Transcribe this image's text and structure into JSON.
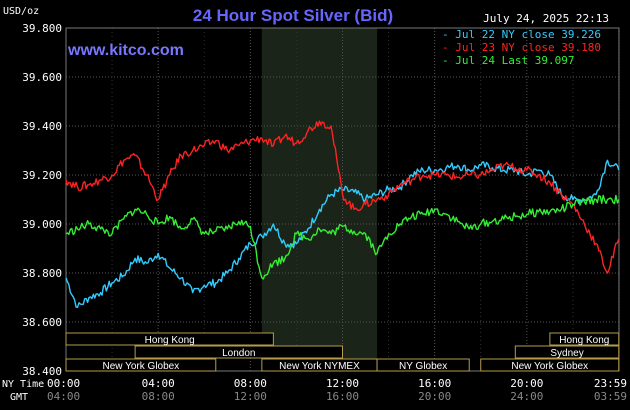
{
  "chart_data": {
    "type": "line",
    "title": "24 Hour Spot Silver (Bid)",
    "watermark": "www.kitco.com",
    "timestamp": "July 24, 2025 22:13",
    "y_unit": "USD/oz",
    "ylim": [
      38.4,
      39.8
    ],
    "y_ticks": [
      "39.800",
      "39.600",
      "39.400",
      "39.200",
      "39.000",
      "38.800",
      "38.600",
      "38.400"
    ],
    "x_time_label_1": "NY Time",
    "x_time_label_2": "GMT",
    "x_ticks_ny": [
      "00:00",
      "04:00",
      "08:00",
      "12:00",
      "16:00",
      "20:00",
      "23:59"
    ],
    "x_ticks_gmt": [
      "04:00",
      "08:00",
      "12:00",
      "16:00",
      "20:00",
      "24:00",
      "03:59"
    ],
    "grid": true,
    "legend_position": "top-right",
    "highlight_window": {
      "label": "New York NYMEX",
      "from_hour": 8.5,
      "to_hour": 13.5
    },
    "sessions": [
      {
        "name": "Hong Kong",
        "row": 0,
        "start": 0.0,
        "end": 9.0
      },
      {
        "name": "London",
        "row": 1,
        "start": 3.0,
        "end": 12.0
      },
      {
        "name": "New York Globex",
        "row": 2,
        "start": 0.0,
        "end": 6.5
      },
      {
        "name": "New York NYMEX",
        "row": 2,
        "start": 8.5,
        "end": 13.5
      },
      {
        "name": "NY Globex",
        "row": 2,
        "start": 13.5,
        "end": 17.5
      },
      {
        "name": "Hong Kong",
        "row": 0,
        "start": 21.0,
        "end": 23.99
      },
      {
        "name": "Sydney",
        "row": 1,
        "start": 19.5,
        "end": 23.99
      },
      {
        "name": "New York Globex",
        "row": 2,
        "start": 18.0,
        "end": 23.99
      }
    ],
    "series": [
      {
        "name": "Jul 22 NY close 39.226",
        "color": "#33ccff",
        "x": [
          0,
          0.5,
          1,
          1.5,
          2,
          2.5,
          3,
          3.5,
          4,
          4.5,
          5,
          5.5,
          6,
          6.5,
          7,
          7.5,
          8,
          8.5,
          9,
          9.5,
          10,
          10.5,
          11,
          11.5,
          12,
          12.5,
          13,
          13.5,
          14,
          14.5,
          15,
          15.5,
          16,
          16.5,
          17,
          17.5,
          18,
          18.5,
          19,
          19.5,
          20,
          20.5,
          21,
          21.5,
          22,
          22.5,
          23,
          23.5,
          23.99
        ],
        "values": [
          38.78,
          38.66,
          38.7,
          38.72,
          38.76,
          38.79,
          38.86,
          38.84,
          38.88,
          38.82,
          38.78,
          38.72,
          38.75,
          38.76,
          38.8,
          38.86,
          38.92,
          38.95,
          39.0,
          38.92,
          38.92,
          38.98,
          39.06,
          39.12,
          39.14,
          39.13,
          39.1,
          39.12,
          39.14,
          39.15,
          39.2,
          39.22,
          39.22,
          39.23,
          39.24,
          39.22,
          39.24,
          39.23,
          39.22,
          39.22,
          39.2,
          39.22,
          39.2,
          39.12,
          39.1,
          39.1,
          39.12,
          39.26,
          39.22
        ]
      },
      {
        "name": "Jul 23 NY close 39.180",
        "color": "#ff2222",
        "x": [
          0,
          0.5,
          1,
          1.5,
          2,
          2.5,
          3,
          3.5,
          4,
          4.5,
          5,
          5.5,
          6,
          6.5,
          7,
          7.5,
          8,
          8.5,
          9,
          9.5,
          10,
          10.5,
          11,
          11.5,
          12,
          12.5,
          13,
          13.5,
          14,
          14.5,
          15,
          15.5,
          16,
          16.5,
          17,
          17.5,
          18,
          18.5,
          19,
          19.5,
          20,
          20.5,
          21,
          21.5,
          22,
          22.5,
          23,
          23.5,
          23.99
        ],
        "values": [
          39.18,
          39.15,
          39.16,
          39.18,
          39.2,
          39.26,
          39.28,
          39.2,
          39.1,
          39.2,
          39.28,
          39.3,
          39.32,
          39.34,
          39.3,
          39.32,
          39.34,
          39.35,
          39.32,
          39.36,
          39.33,
          39.38,
          39.42,
          39.4,
          39.12,
          39.06,
          39.08,
          39.1,
          39.12,
          39.16,
          39.18,
          39.2,
          39.2,
          39.2,
          39.19,
          39.2,
          39.2,
          39.22,
          39.24,
          39.23,
          39.22,
          39.2,
          39.17,
          39.12,
          39.08,
          39.0,
          38.92,
          38.8,
          38.94
        ]
      },
      {
        "name": "Jul 24 Last 39.097",
        "color": "#33ee33",
        "x": [
          0,
          0.5,
          1,
          1.5,
          2,
          2.5,
          3,
          3.5,
          4,
          4.5,
          5,
          5.5,
          6,
          6.5,
          7,
          7.5,
          8,
          8.5,
          9,
          9.5,
          10,
          10.5,
          11,
          11.5,
          12,
          12.5,
          13,
          13.5,
          14,
          14.5,
          15,
          15.5,
          16,
          16.5,
          17,
          17.5,
          18,
          18.5,
          19,
          19.5,
          20,
          20.5,
          21,
          21.5,
          22,
          22.5,
          23,
          23.5,
          23.99
        ],
        "values": [
          38.96,
          38.98,
          39.0,
          38.98,
          38.96,
          39.02,
          39.06,
          39.04,
          39.0,
          39.03,
          38.98,
          39.02,
          38.96,
          38.97,
          38.98,
          39.01,
          38.99,
          38.78,
          38.84,
          38.86,
          38.96,
          38.94,
          38.98,
          38.96,
          38.99,
          38.97,
          38.96,
          38.88,
          38.96,
          39.0,
          39.03,
          39.04,
          39.06,
          39.04,
          39.01,
          38.98,
          39.0,
          39.01,
          39.02,
          39.03,
          39.04,
          39.05,
          39.05,
          39.06,
          39.08,
          39.09,
          39.1,
          39.1,
          39.1
        ]
      }
    ]
  }
}
